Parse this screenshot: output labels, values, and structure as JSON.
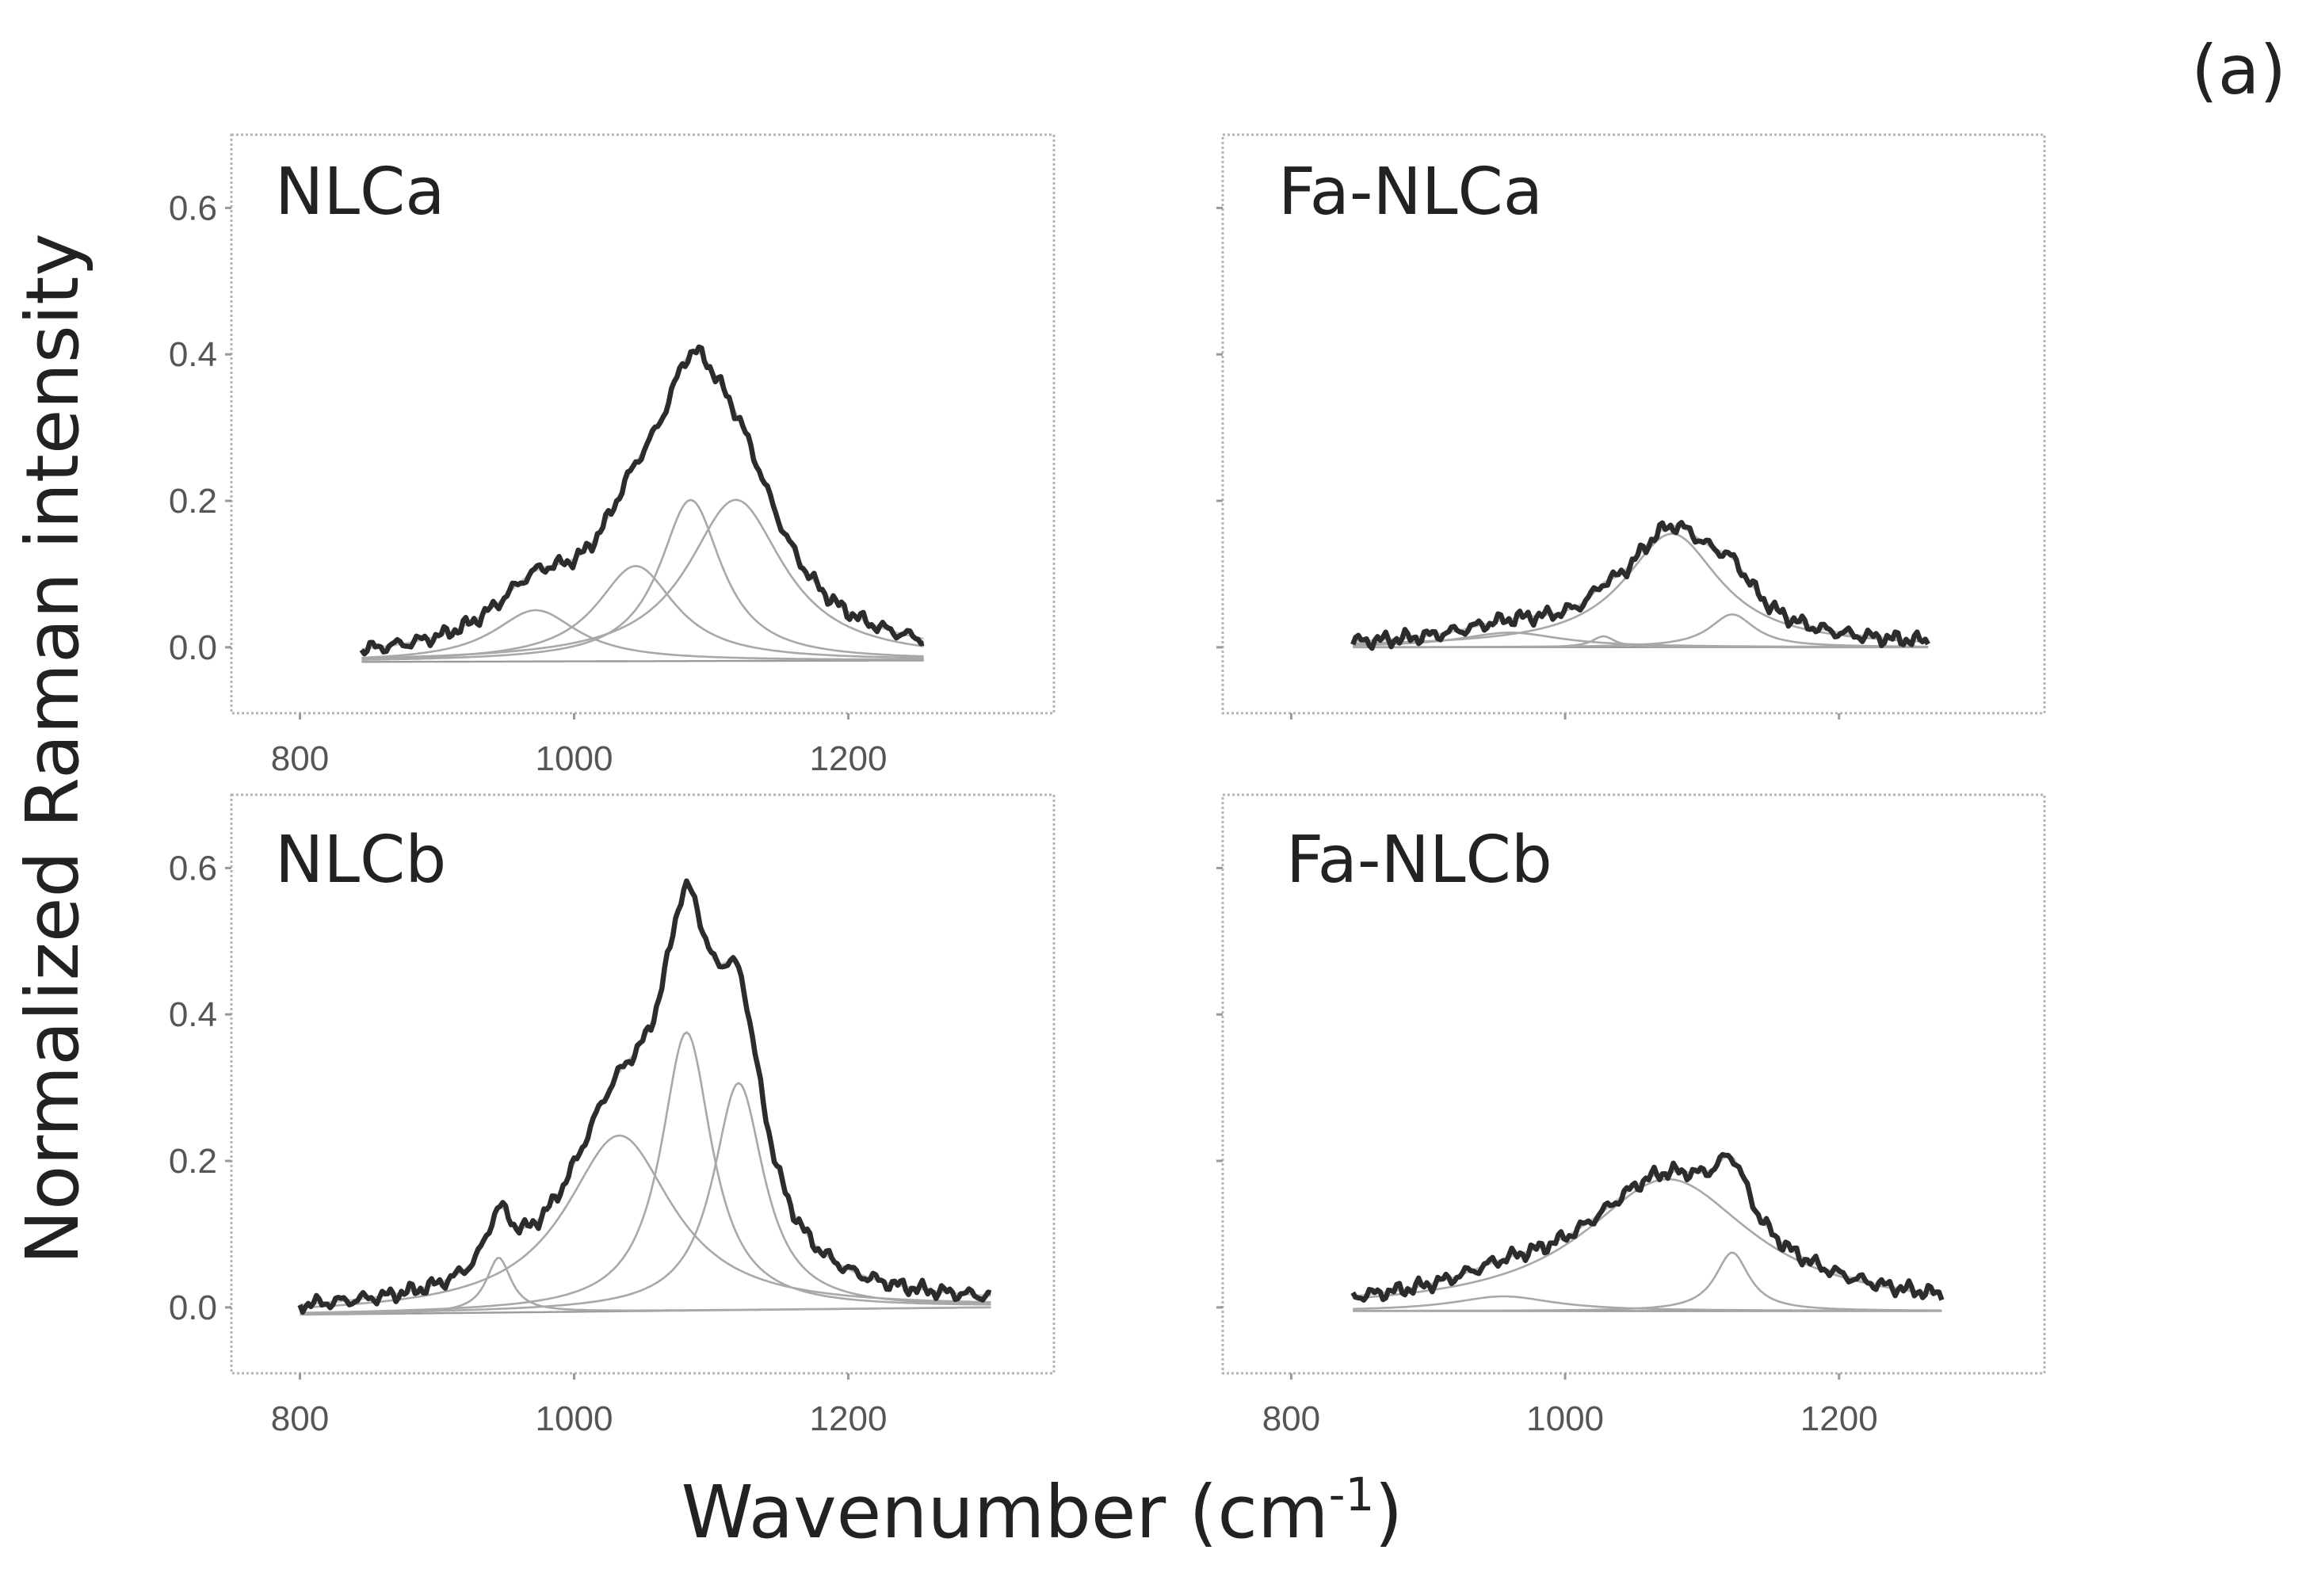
{
  "figure_tag": "(a)",
  "y_axis_title": "Normalized Raman intensity",
  "x_axis_title_main": "Wavenumber (cm",
  "x_axis_title_sup": "-1",
  "x_axis_title_end": ")",
  "chart_data": [
    {
      "type": "line",
      "title": "NLCa",
      "xlim": [
        750,
        1350
      ],
      "ylim": [
        -0.09,
        0.7
      ],
      "x_ticks": [
        800,
        1000,
        1200
      ],
      "y_ticks": [
        0.0,
        0.2,
        0.4,
        0.6
      ],
      "x_tick_labels": [
        "800",
        "1000",
        "1200"
      ],
      "y_tick_labels": [
        "0.0",
        "0.2",
        "0.4",
        "0.6"
      ],
      "x_range": [
        845,
        1255
      ],
      "baseline": [
        -0.02,
        -0.018
      ],
      "components": [
        {
          "center": 972,
          "height": 0.07,
          "width": 75
        },
        {
          "center": 1045,
          "height": 0.13,
          "width": 70
        },
        {
          "center": 1085,
          "height": 0.22,
          "width": 55
        },
        {
          "center": 1118,
          "height": 0.22,
          "width": 85
        }
      ],
      "grid": false,
      "legend": "none"
    },
    {
      "type": "line",
      "title": "Fa-NLCa",
      "xlim": [
        750,
        1350
      ],
      "ylim": [
        -0.09,
        0.7
      ],
      "x_ticks": [
        800,
        1000,
        1200
      ],
      "y_ticks": [
        0.0,
        0.2,
        0.4,
        0.6
      ],
      "x_tick_labels": [],
      "y_tick_labels": [],
      "x_range": [
        845,
        1265
      ],
      "baseline": [
        0.0,
        0.0
      ],
      "components": [
        {
          "center": 960,
          "height": 0.02,
          "width": 90
        },
        {
          "center": 1028,
          "height": 0.015,
          "width": 20
        },
        {
          "center": 1078,
          "height": 0.155,
          "width": 85
        },
        {
          "center": 1122,
          "height": 0.045,
          "width": 40
        }
      ],
      "grid": false,
      "legend": "none"
    },
    {
      "type": "line",
      "title": "NLCb",
      "xlim": [
        750,
        1350
      ],
      "ylim": [
        -0.09,
        0.7
      ],
      "x_ticks": [
        800,
        1000,
        1200
      ],
      "y_ticks": [
        0.0,
        0.2,
        0.4,
        0.6
      ],
      "x_tick_labels": [
        "800",
        "1000",
        "1200"
      ],
      "y_tick_labels": [
        "0.0",
        "0.2",
        "0.4",
        "0.6"
      ],
      "x_range": [
        800,
        1305
      ],
      "baseline": [
        -0.01,
        0.0
      ],
      "components": [
        {
          "center": 945,
          "height": 0.075,
          "width": 22
        },
        {
          "center": 1033,
          "height": 0.24,
          "width": 95
        },
        {
          "center": 1082,
          "height": 0.38,
          "width": 45
        },
        {
          "center": 1120,
          "height": 0.31,
          "width": 45
        }
      ],
      "grid": false,
      "legend": "none"
    },
    {
      "type": "line",
      "title": "Fa-NLCb",
      "xlim": [
        750,
        1350
      ],
      "ylim": [
        -0.09,
        0.7
      ],
      "x_ticks": [
        800,
        1000,
        1200
      ],
      "y_ticks": [
        0.0,
        0.2,
        0.4,
        0.6
      ],
      "x_tick_labels": [
        "800",
        "1000",
        "1200"
      ],
      "y_tick_labels": [],
      "x_range": [
        845,
        1275
      ],
      "baseline": [
        -0.005,
        -0.005
      ],
      "components": [
        {
          "center": 955,
          "height": 0.02,
          "width": 90
        },
        {
          "center": 1075,
          "height": 0.18,
          "width": 150
        },
        {
          "center": 1122,
          "height": 0.08,
          "width": 30
        }
      ],
      "grid": false,
      "legend": "none"
    }
  ]
}
